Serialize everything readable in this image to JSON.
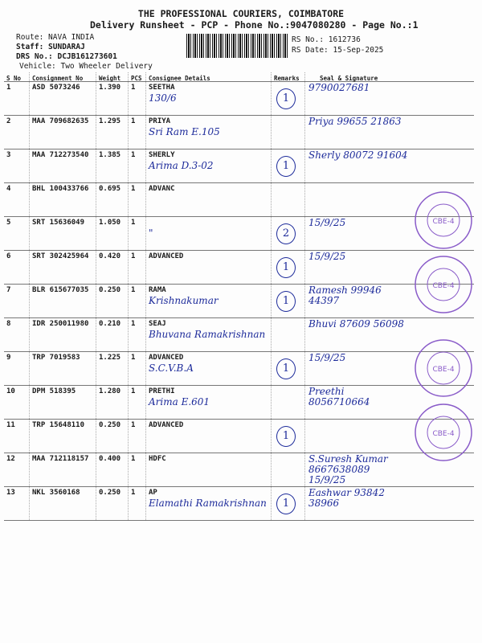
{
  "header": {
    "title": "THE PROFESSIONAL COURIERS, COIMBATORE",
    "subtitle": "Delivery Runsheet - PCP - Phone No.:9047080280 - Page No.:1"
  },
  "meta": {
    "route": "Route: NAVA INDIA",
    "staff": "Staff: SUNDARAJ",
    "drs": "DRS No.: DCJB161273601",
    "vehicle": "Vehicle: Two Wheeler Delivery",
    "rs_no": "RS No.: 1612736",
    "rs_date": "RS Date: 15-Sep-2025"
  },
  "columns": [
    "S No",
    "Consignment No",
    "Weight",
    "PCS",
    "Consignee Details",
    "Remarks",
    "Seal & Signature"
  ],
  "rows": [
    {
      "sno": "1",
      "cn": "ASD 5073246",
      "wt": "1.390",
      "pcs": "1",
      "name": "SEETHA",
      "note": "130/6",
      "remark": "1",
      "sig": "9790027681"
    },
    {
      "sno": "2",
      "cn": "MAA 709682635",
      "wt": "1.295",
      "pcs": "1",
      "name": "PRIYA",
      "note": "Sri Ram E.105",
      "remark": "",
      "sig": "Priya 99655 21863"
    },
    {
      "sno": "3",
      "cn": "MAA 712273540",
      "wt": "1.385",
      "pcs": "1",
      "name": "SHERLY",
      "note": "Arima D.3-02",
      "remark": "1",
      "sig": "Sherly 80072 91604"
    },
    {
      "sno": "4",
      "cn": "BHL 100433766",
      "wt": "0.695",
      "pcs": "1",
      "name": "ADVANC",
      "note": "",
      "remark": "",
      "sig": ""
    },
    {
      "sno": "5",
      "cn": "SRT 15636049",
      "wt": "1.050",
      "pcs": "1",
      "name": "",
      "note": "\"",
      "remark": "2",
      "sig": "15/9/25"
    },
    {
      "sno": "6",
      "cn": "SRT 302425964",
      "wt": "0.420",
      "pcs": "1",
      "name": "ADVANCED",
      "note": "",
      "remark": "1",
      "sig": "15/9/25"
    },
    {
      "sno": "7",
      "cn": "BLR 615677035",
      "wt": "0.250",
      "pcs": "1",
      "name": "RAMA",
      "note": "Krishnakumar",
      "remark": "1",
      "sig": "Ramesh 99946 44397"
    },
    {
      "sno": "8",
      "cn": "IDR 250011980",
      "wt": "0.210",
      "pcs": "1",
      "name": "SEAJ",
      "note": "Bhuvana Ramakrishnan",
      "remark": "",
      "sig": "Bhuvi 87609 56098"
    },
    {
      "sno": "9",
      "cn": "TRP 7019583",
      "wt": "1.225",
      "pcs": "1",
      "name": "ADVANCED",
      "note": "S.C.V.B.A",
      "remark": "1",
      "sig": "15/9/25"
    },
    {
      "sno": "10",
      "cn": "DPM 518395",
      "wt": "1.280",
      "pcs": "1",
      "name": "PRETHI",
      "note": "Arima E.601",
      "remark": "",
      "sig": "Preethi 8056710664"
    },
    {
      "sno": "11",
      "cn": "TRP 15648110",
      "wt": "0.250",
      "pcs": "1",
      "name": "ADVANCED",
      "note": "",
      "remark": "1",
      "sig": ""
    },
    {
      "sno": "12",
      "cn": "MAA 712118157",
      "wt": "0.400",
      "pcs": "1",
      "name": "HDFC",
      "note": "",
      "remark": "",
      "sig": "S.Suresh Kumar 8667638089 15/9/25"
    },
    {
      "sno": "13",
      "cn": "NKL 3560168",
      "wt": "0.250",
      "pcs": "1",
      "name": "AP",
      "note": "Elamathi Ramakrishnan",
      "remark": "1",
      "sig": "Eashwar 93842 38966"
    }
  ],
  "stamp": {
    "text": "ADVANCED CLOTHING CONCEPTS",
    "code": "CBE-4",
    "color": "#8a5cc9"
  },
  "colors": {
    "ink": "#1c2a9a"
  }
}
